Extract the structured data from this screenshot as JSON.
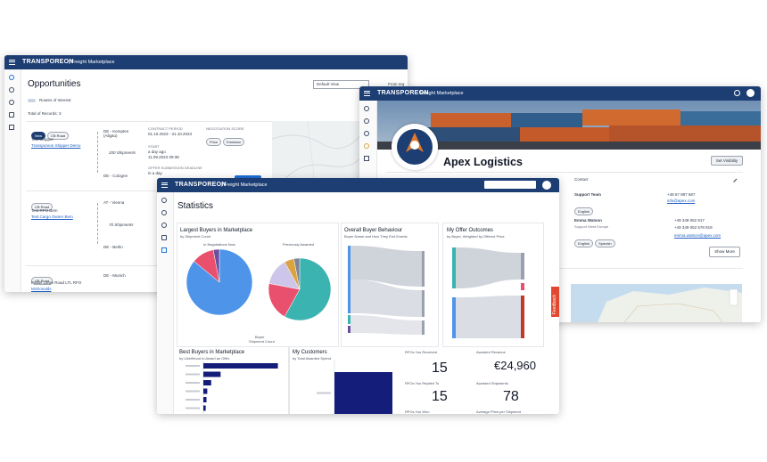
{
  "opportunities": {
    "header": {
      "brand": "TRANSPOREON",
      "product": "| Freight Marketplace"
    },
    "title": "Opportunities",
    "view": "Default View",
    "filter": "From req",
    "routes_toggle": "Routes of Interest",
    "total": "Total of Records: 3",
    "rows": [
      {
        "tags": [
          "New",
          "CB Road"
        ],
        "shipper": "Test Shipper",
        "company": "Transporeon Shipper Demo",
        "origin": "DE - Kempten (Allgäu)",
        "shipments": "200 Shipments",
        "destination": "DE - Cologne",
        "contract_label": "CONTRACT PERIOD",
        "contract": "01.10.2023 - 31.10.2023",
        "start_label": "START",
        "start": "a day ago",
        "start_date": "11.09.2023 09:38",
        "score_label": "NEGOTIATION SCORE",
        "score_tags": [
          "Price",
          "Emission"
        ],
        "deadline_label": "OFFER SUBMISSION DEADLINE",
        "deadline": "in a day"
      },
      {
        "tags": [
          "CB Road"
        ],
        "shipper": "Test RFO Bem",
        "company": "Test Cargo Owner Bem",
        "origin": "AT - Vienna",
        "shipments": "70 Shipments",
        "destination": "DE - Berlin"
      },
      {
        "tags": [
          "CB Road"
        ],
        "shipper": "Pallas Large Road LTL RFO",
        "company": "McDonalds",
        "origin": "DE - Munich"
      }
    ]
  },
  "profile": {
    "header": {
      "brand": "TRANSPOREON",
      "product": "Freight Marketplace"
    },
    "name": "Apex Logistics",
    "visibility_button": "Set Visibility",
    "contact_title": "Contact",
    "contacts": [
      {
        "name": "Support Team",
        "languages": [
          "English"
        ],
        "phones": [
          "+48 67 987 687"
        ],
        "email": "info@apex.com"
      },
      {
        "name": "Emma Watson",
        "role": "Support West Europe",
        "languages": [
          "English",
          "Spanish"
        ],
        "phones": [
          "+49 349 052 817",
          "+49 349 052 578 819"
        ],
        "email": "emma.watson@apex.com"
      }
    ],
    "more_button": "Show More"
  },
  "statistics": {
    "header": {
      "brand": "TRANSPOREON",
      "product": "| Freight Marketplace"
    },
    "title": "Statistics",
    "largest_buyers": {
      "title": "Largest Buyers in Marketplace",
      "subtitle": "by Shipment Count",
      "pies": [
        {
          "label": "In Negotiations Now",
          "values": [
            86,
            11,
            3
          ],
          "colors": [
            "#4e95ea",
            "#e8506e",
            "#6b4fa0"
          ]
        },
        {
          "label": "Previously Awarded",
          "values": [
            58,
            20,
            14,
            5,
            3
          ],
          "colors": [
            "#3bb3b0",
            "#e8506e",
            "#cdc6ea",
            "#d9a441",
            "#7f8496"
          ]
        }
      ],
      "legend_title": "Buyer",
      "legend_subtitle": "Shipment Count"
    },
    "buyer_behaviour": {
      "title": "Overall Buyer Behaviour",
      "subtitle": "Buyer Name and How They End Events"
    },
    "offer_outcomes": {
      "title": "My Offer Outcomes",
      "subtitle": "by Buyer, Weighted by Offered Price"
    },
    "best_buyers": {
      "type": "bar",
      "title": "Best Buyers in Marketplace",
      "subtitle": "by LikeliHood to Award an Offer",
      "values": [
        95,
        22,
        10,
        5,
        4,
        3
      ],
      "xlim": [
        0,
        100
      ],
      "color": "#141e7a"
    },
    "customers": {
      "type": "bar",
      "title": "My Customers",
      "subtitle": "by Total Awarded Spend",
      "values": [
        100
      ],
      "xlim": [
        0,
        100
      ],
      "color": "#141e7a"
    },
    "kpis": [
      {
        "label": "RFOs You Received",
        "value": 15
      },
      {
        "label": "Awarded Revenue",
        "value": "€24,960"
      },
      {
        "label": "RFOs You Replied To",
        "value": 15
      },
      {
        "label": "Awarded Shipments",
        "value": 78
      },
      {
        "label": "RFOs You Won"
      },
      {
        "label": "Average Price per Shipment"
      }
    ],
    "feedback": "Feedback"
  }
}
